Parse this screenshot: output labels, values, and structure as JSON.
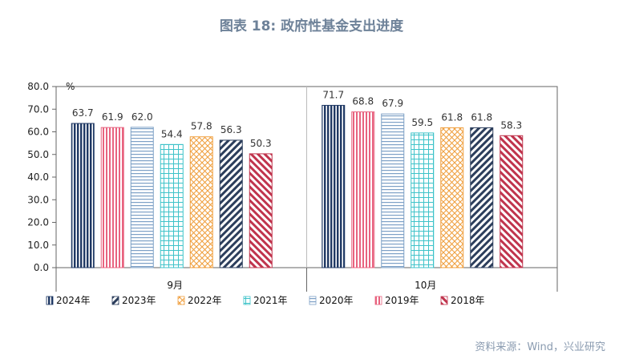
{
  "title": "图表 18: 政府性基金支出进度",
  "source": "资料来源：Wind，兴业研究",
  "chart_data": {
    "type": "bar",
    "unit": "%",
    "categories": [
      "9月",
      "10月"
    ],
    "ylim": [
      0,
      80
    ],
    "yticks": [
      "0.0",
      "10.0",
      "20.0",
      "30.0",
      "40.0",
      "50.0",
      "60.0",
      "70.0",
      "80.0"
    ],
    "grid": false,
    "legend_position": "bottom",
    "series": [
      {
        "name": "2024年",
        "values": [
          63.7,
          71.7
        ],
        "labels": [
          "63.7",
          "71.7"
        ],
        "color": "#1f3864",
        "pattern": "vertical"
      },
      {
        "name": "2019年",
        "values": [
          61.9,
          68.8
        ],
        "labels": [
          "61.9",
          "68.8"
        ],
        "color": "#e8637f",
        "pattern": "vertical-light"
      },
      {
        "name": "2020年",
        "values": [
          62.0,
          67.9
        ],
        "labels": [
          "62.0",
          "67.9"
        ],
        "color": "#7da0c6",
        "pattern": "horizontal"
      },
      {
        "name": "2021年",
        "values": [
          54.4,
          59.5
        ],
        "labels": [
          "54.4",
          "59.5"
        ],
        "color": "#3ec3c9",
        "pattern": "grid"
      },
      {
        "name": "2022年",
        "values": [
          57.8,
          61.8
        ],
        "labels": [
          "57.8",
          "61.8"
        ],
        "color": "#f0a040",
        "pattern": "diamond"
      },
      {
        "name": "2023年",
        "values": [
          56.3,
          61.8
        ],
        "labels": [
          "56.3",
          "61.8"
        ],
        "color": "#2c3e5c",
        "pattern": "diagonal-up"
      },
      {
        "name": "2018年",
        "values": [
          50.3,
          58.3
        ],
        "labels": [
          "50.3",
          "58.3"
        ],
        "color": "#c0344d",
        "pattern": "diagonal-down"
      }
    ],
    "legend_order": [
      "2024年",
      "2023年",
      "2022年",
      "2021年",
      "2020年",
      "2019年",
      "2018年"
    ]
  }
}
